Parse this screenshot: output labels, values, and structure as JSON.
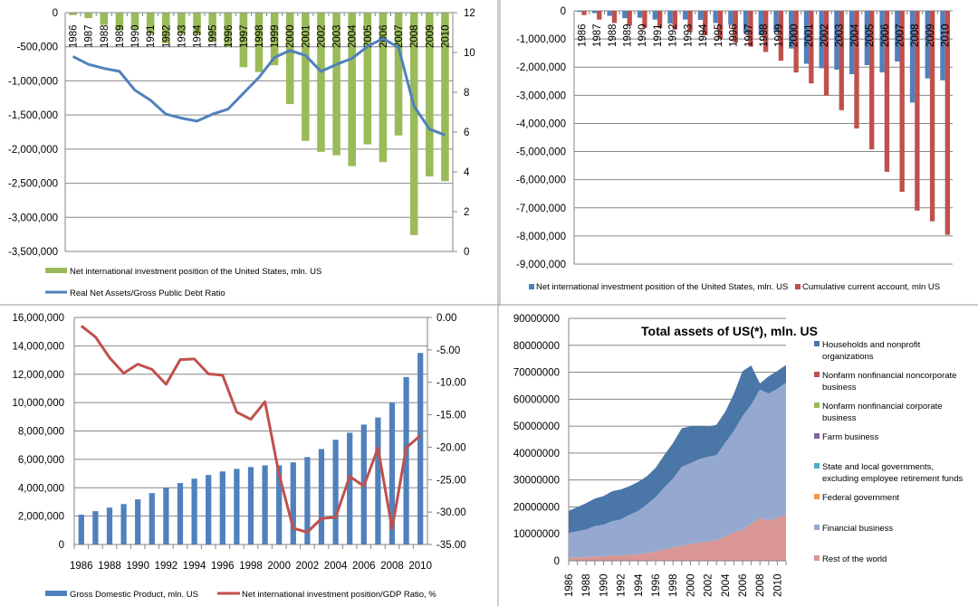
{
  "chart_data": [
    {
      "type": "bar",
      "panel": "top-left",
      "title": "",
      "categories": [
        "1986",
        "1987",
        "1988",
        "1989",
        "1990",
        "1991",
        "1992",
        "1993",
        "1994",
        "1995",
        "1996",
        "1997",
        "1998",
        "1999",
        "2000",
        "2001",
        "2002",
        "2003",
        "2004",
        "2005",
        "2006",
        "2007",
        "2008",
        "2009",
        "2010"
      ],
      "y_ticks": [
        "0",
        "-500,000",
        "-1,000,000",
        "-1,500,000",
        "-2,000,000",
        "-2,500,000",
        "-3,000,000",
        "-3,500,000"
      ],
      "y2_ticks": [
        "0",
        "2",
        "4",
        "6",
        "8",
        "10",
        "12"
      ],
      "ylim": [
        -3500000,
        0
      ],
      "y2lim": [
        0,
        12
      ],
      "grid": true,
      "legend_position": "bottom",
      "series": [
        {
          "name": "Net international investment position of the United States, mln. US",
          "type": "bar",
          "axis": "left",
          "color": "#9BBB59",
          "values": [
            -36000,
            -80000,
            -180000,
            -260000,
            -245000,
            -310000,
            -450000,
            -310000,
            -320000,
            -430000,
            -495000,
            -800000,
            -870000,
            -770000,
            -1340000,
            -1880000,
            -2040000,
            -2090000,
            -2250000,
            -1930000,
            -2190000,
            -1800000,
            -3260000,
            -2400000,
            -2470000
          ]
        },
        {
          "name": "Real Net Assets/Gross Public Debt Ratio",
          "type": "line",
          "axis": "right",
          "color": "#4F81BD",
          "values": [
            9.8,
            9.4,
            9.2,
            9.05,
            8.1,
            7.6,
            6.9,
            6.7,
            6.55,
            6.9,
            7.15,
            7.95,
            8.75,
            9.75,
            10.1,
            9.85,
            9.05,
            9.4,
            9.7,
            10.3,
            10.7,
            10.25,
            7.3,
            6.15,
            5.85
          ]
        }
      ]
    },
    {
      "type": "bar",
      "panel": "top-right",
      "title": "",
      "categories": [
        "1986",
        "1987",
        "1988",
        "1989",
        "1990",
        "1991",
        "1992",
        "1993",
        "1994",
        "1995",
        "1996",
        "1997",
        "1998",
        "1999",
        "2000",
        "2001",
        "2002",
        "2003",
        "2004",
        "2005",
        "2006",
        "2007",
        "2008",
        "2009",
        "2010"
      ],
      "y_ticks": [
        "0",
        "-1,000,000",
        "-2,000,000",
        "-3,000,000",
        "-4,000,000",
        "-5,000,000",
        "-6,000,000",
        "-7,000,000",
        "-8,000,000",
        "-9,000,000"
      ],
      "ylim": [
        -9000000,
        0
      ],
      "grid": true,
      "legend_position": "bottom",
      "series": [
        {
          "name": "Net international investment position of the United States, mln. US",
          "color": "#4F81BD",
          "values": [
            -36000,
            -80000,
            -180000,
            -260000,
            -245000,
            -310000,
            -450000,
            -310000,
            -320000,
            -430000,
            -495000,
            -800000,
            -870000,
            -770000,
            -1340000,
            -1880000,
            -2040000,
            -2090000,
            -2250000,
            -1930000,
            -2190000,
            -1800000,
            -3260000,
            -2400000,
            -2470000
          ]
        },
        {
          "name": "Cumulative current account, mln US",
          "color": "#C0504D",
          "values": [
            -150000,
            -310000,
            -430000,
            -520000,
            -600000,
            -610000,
            -660000,
            -750000,
            -870000,
            -1000000,
            -1130000,
            -1270000,
            -1460000,
            -1770000,
            -2190000,
            -2580000,
            -3010000,
            -3530000,
            -4180000,
            -4920000,
            -5720000,
            -6430000,
            -7100000,
            -7480000,
            -7960000
          ]
        }
      ]
    },
    {
      "type": "bar",
      "panel": "bottom-left",
      "title": "",
      "categories": [
        "1986",
        "1987",
        "1988",
        "1989",
        "1990",
        "1991",
        "1992",
        "1993",
        "1994",
        "1995",
        "1996",
        "1997",
        "1998",
        "1999",
        "2000",
        "2001",
        "2002",
        "2003",
        "2004",
        "2005",
        "2006",
        "2007",
        "2008",
        "2009",
        "2010"
      ],
      "x_tick_labels": [
        "1986",
        "1988",
        "1990",
        "1992",
        "1994",
        "1996",
        "1998",
        "2000",
        "2002",
        "2004",
        "2006",
        "2008",
        "2010"
      ],
      "y_ticks": [
        "0",
        "2,000,000",
        "4,000,000",
        "6,000,000",
        "8,000,000",
        "10,000,000",
        "12,000,000",
        "14,000,000",
        "16,000,000"
      ],
      "y2_ticks": [
        "0.00",
        "-5.00",
        "-10.00",
        "-15.00",
        "-20.00",
        "-25.00",
        "-30.00",
        "-35.00"
      ],
      "ylim": [
        0,
        16000000
      ],
      "y2lim": [
        -35,
        0
      ],
      "grid": true,
      "legend_position": "bottom",
      "series": [
        {
          "name": "Gross Domestic Product, mln. US",
          "type": "bar",
          "axis": "left",
          "color": "#4F81BD",
          "values": [
            2100000,
            2350000,
            2600000,
            2850000,
            3180000,
            3620000,
            4000000,
            4330000,
            4640000,
            4900000,
            5150000,
            5330000,
            5460000,
            5580000,
            5580000,
            5790000,
            6160000,
            6730000,
            7380000,
            7880000,
            8450000,
            8950000,
            10000000,
            11800000,
            13500000
          ]
        },
        {
          "name": "Net international investment position/GDP Ratio, %",
          "type": "line",
          "axis": "right",
          "color": "#C0504D",
          "values": [
            -1.3,
            -3.0,
            -6.2,
            -8.6,
            -7.2,
            -8.0,
            -10.3,
            -6.5,
            -6.4,
            -8.7,
            -8.9,
            -14.6,
            -15.7,
            -13.0,
            -24.2,
            -32.5,
            -33.1,
            -31.0,
            -30.8,
            -24.5,
            -26.0,
            -20.1,
            -32.6,
            -20.1,
            -18.2
          ]
        }
      ]
    },
    {
      "type": "area",
      "panel": "bottom-right",
      "title": "Total assets of US(*), mln. US",
      "categories": [
        "1986",
        "1987",
        "1988",
        "1989",
        "1990",
        "1991",
        "1992",
        "1993",
        "1994",
        "1995",
        "1996",
        "1997",
        "1998",
        "1999",
        "2000",
        "2001",
        "2002",
        "2003",
        "2004",
        "2005",
        "2006",
        "2007",
        "2008",
        "2009",
        "2010",
        "2011"
      ],
      "x_tick_labels": [
        "1986",
        "1988",
        "1990",
        "1992",
        "1994",
        "1996",
        "1998",
        "2000",
        "2002",
        "2004",
        "2006",
        "2008",
        "2010"
      ],
      "y_ticks": [
        "0",
        "10000000",
        "20000000",
        "30000000",
        "40000000",
        "50000000",
        "60000000",
        "70000000",
        "80000000",
        "90000000"
      ],
      "ylim": [
        0,
        90000000
      ],
      "grid": true,
      "legend_position": "right",
      "stacked": true,
      "series": [
        {
          "name": "Rest of the world",
          "color": "#D99694",
          "values": [
            1000000,
            1200000,
            1400000,
            1600000,
            1700000,
            1900000,
            2000000,
            2200000,
            2400000,
            2900000,
            3400000,
            4200000,
            4900000,
            5500000,
            6200000,
            6700000,
            7200000,
            7600000,
            9000000,
            10500000,
            11500000,
            13800000,
            15800000,
            15000000,
            15800000,
            17500000
          ]
        },
        {
          "name": "Financial business",
          "color": "#95A9D0",
          "values": [
            9300000,
            9800000,
            10200000,
            11300000,
            11700000,
            12800000,
            13400000,
            14900000,
            16100000,
            18100000,
            20200000,
            23100000,
            25600000,
            29400000,
            30000000,
            31000000,
            31400000,
            31600000,
            34800000,
            37700000,
            42200000,
            44200000,
            47800000,
            47100000,
            48000000,
            48600000
          ]
        },
        {
          "name": "Federal government",
          "color": "#F79646",
          "values": []
        },
        {
          "name": "State and local governments, excluding employee retirement funds",
          "color": "#4BACC6",
          "values": []
        },
        {
          "name": "Farm business",
          "color": "#8064A2",
          "values": []
        },
        {
          "name": "Nonfarm nonfinancial corporate business",
          "color": "#9BBB59",
          "values": []
        },
        {
          "name": "Nonfarm nonfinancial noncorporate business",
          "color": "#C0504D",
          "values": []
        },
        {
          "name": "Households and nonprofit organizations",
          "color": "#4A76A8",
          "values": [
            8300000,
            8900000,
            9800000,
            10200000,
            10600000,
            11100000,
            11100000,
            10600000,
            10800000,
            10400000,
            10900000,
            12000000,
            13200000,
            14300000,
            13700000,
            12400000,
            11200000,
            11300000,
            11500000,
            13800000,
            16700000,
            14500000,
            2200000,
            6400000,
            6700000,
            6600000
          ]
        }
      ]
    }
  ],
  "legends": {
    "c1": [
      "Net international investment position of the United States, mln. US",
      "Real Net Assets/Gross Public Debt Ratio"
    ],
    "c2": [
      "Net international investment position of the United States, mln. US",
      "Cumulative current account, mln US"
    ],
    "c3": [
      "Gross Domestic Product, mln. US",
      "Net international investment position/GDP Ratio, %"
    ],
    "c4": [
      "Households and nonprofit",
      "organizations",
      "Nonfarm nonfinancial noncorporate",
      "business",
      "Nonfarm nonfinancial corporate",
      "business",
      "Farm business",
      "State and local governments,",
      "excluding employee retirement funds",
      "Federal government",
      "Financial business",
      "Rest of the world"
    ]
  }
}
